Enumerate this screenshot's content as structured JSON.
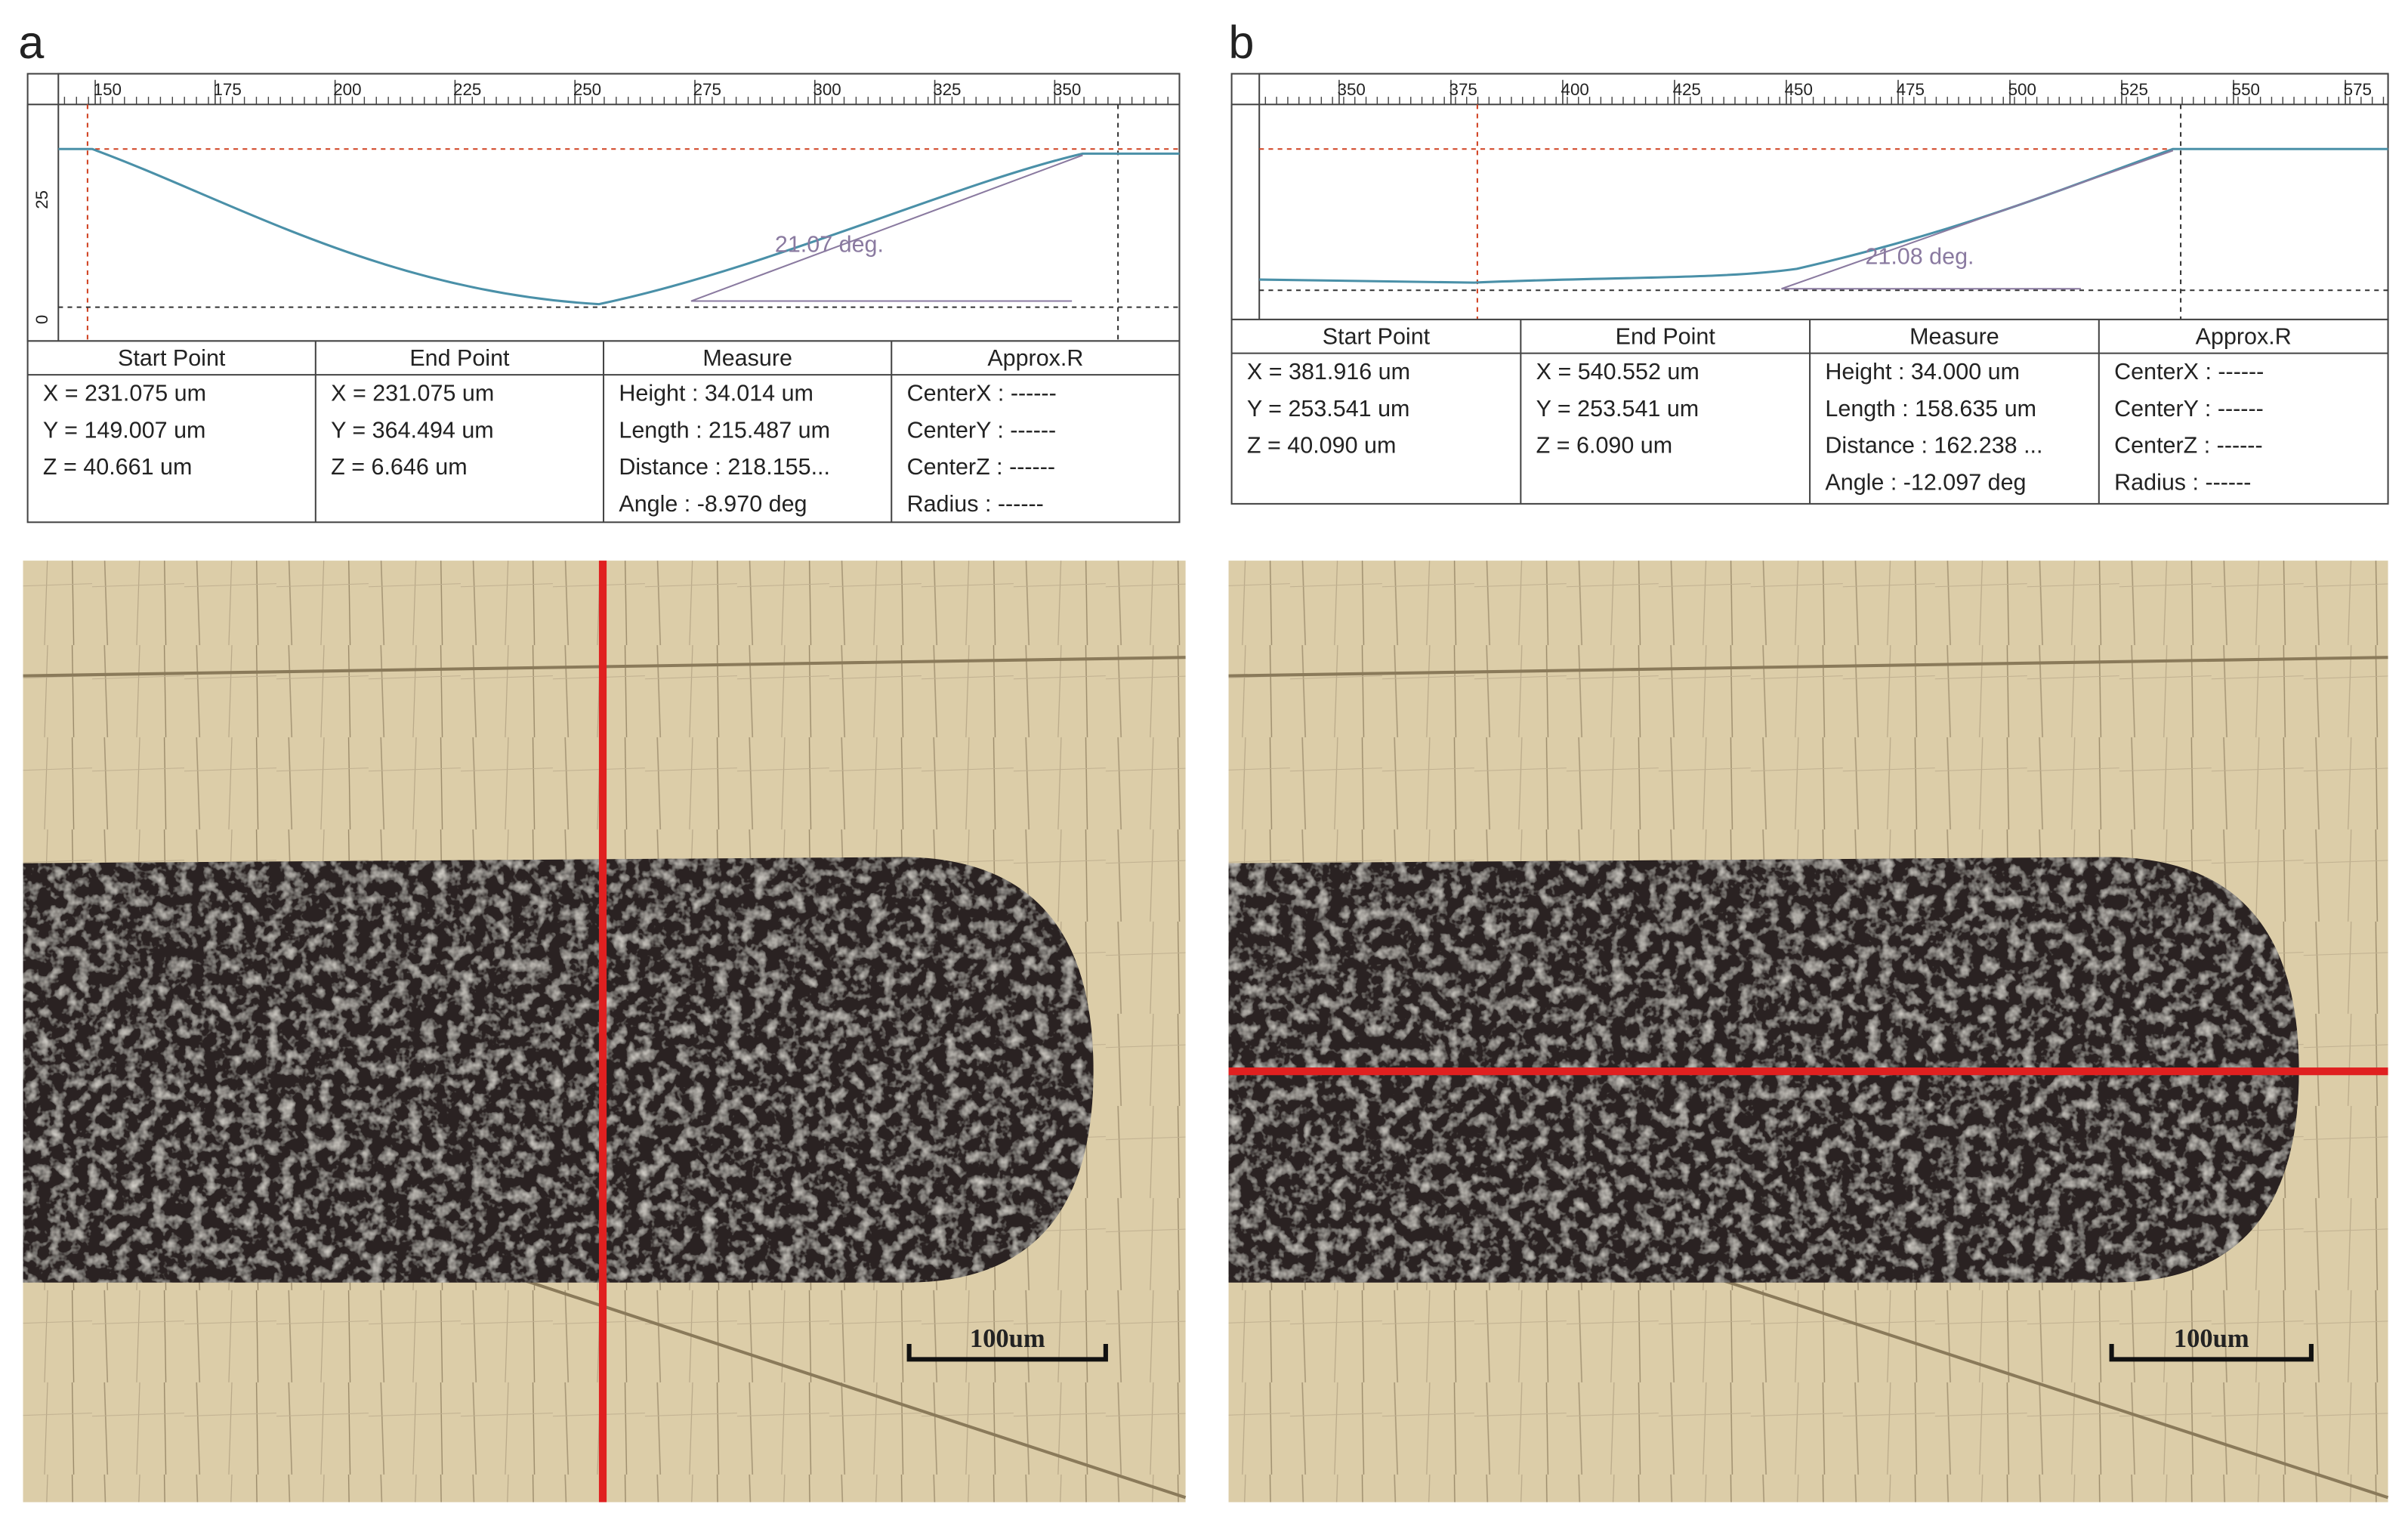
{
  "panels": [
    {
      "label": "a",
      "ruler_x": [
        "150",
        "175",
        "200",
        "225",
        "250",
        "275",
        "300",
        "325",
        "350"
      ],
      "ruler_y": [
        "25",
        "0"
      ],
      "angle_label": "21.07 deg.",
      "table": [
        {
          "header": "Start Point",
          "lines": [
            "X = 231.075 um",
            "Y = 149.007 um",
            "Z = 40.661 um"
          ]
        },
        {
          "header": "End Point",
          "lines": [
            "X = 231.075 um",
            "Y = 364.494 um",
            "Z = 6.646 um"
          ]
        },
        {
          "header": "Measure",
          "lines": [
            "Height : 34.014 um",
            "Length : 215.487 um",
            "Distance : 218.155...",
            "Angle : -8.970 deg"
          ]
        },
        {
          "header": "Approx.R",
          "lines": [
            "CenterX : ------",
            "CenterY : ------",
            "CenterZ : ------",
            "Radius : ------"
          ]
        }
      ],
      "scale_bar": "100um"
    },
    {
      "label": "b",
      "ruler_x": [
        "350",
        "375",
        "400",
        "425",
        "450",
        "475",
        "500",
        "525",
        "550",
        "575"
      ],
      "angle_label": "21.08 deg.",
      "table": [
        {
          "header": "Start Point",
          "lines": [
            "X = 381.916 um",
            "Y = 253.541 um",
            "Z = 40.090 um"
          ]
        },
        {
          "header": "End Point",
          "lines": [
            "X = 540.552 um",
            "Y = 253.541 um",
            "Z = 6.090 um"
          ]
        },
        {
          "header": "Measure",
          "lines": [
            "Height : 34.000 um",
            "Length : 158.635 um",
            "Distance : 162.238 ...",
            "Angle : -12.097 deg"
          ]
        },
        {
          "header": "Approx.R",
          "lines": [
            "CenterX : ------",
            "CenterY : ------",
            "CenterZ : ------",
            "Radius : ------"
          ]
        }
      ],
      "scale_bar": "100um"
    }
  ]
}
